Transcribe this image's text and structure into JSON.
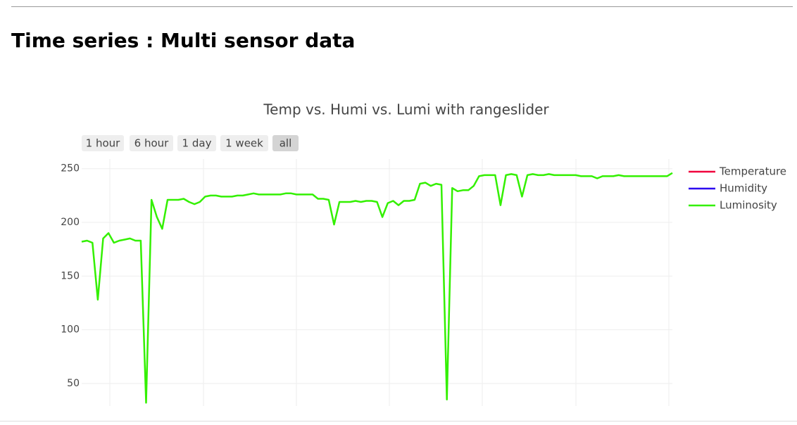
{
  "heading": "Time series : Multi sensor data",
  "range_buttons": [
    "1 hour",
    "6 hour",
    "1 day",
    "1 week",
    "all"
  ],
  "chart_data": {
    "type": "line",
    "title": "Temp vs. Humi vs. Lumi with rangeslider",
    "categories": [
      null,
      null,
      null,
      null,
      null,
      null,
      null,
      null,
      null,
      null,
      null,
      null,
      null,
      null,
      null,
      null,
      null,
      null,
      null,
      null,
      null,
      null,
      null,
      null,
      null,
      null,
      null,
      null,
      null,
      null,
      null,
      null,
      null,
      null,
      null,
      null,
      null,
      null,
      null,
      null,
      null,
      null,
      null,
      null,
      null,
      null,
      null,
      null,
      null,
      null,
      null,
      null,
      null,
      null,
      null,
      null,
      null,
      null,
      null,
      null,
      null,
      null,
      null,
      null,
      null,
      null,
      null,
      null,
      null,
      null,
      null,
      null,
      null,
      null,
      null,
      null,
      null,
      null,
      null,
      null,
      null,
      null,
      null,
      null,
      null,
      null,
      null,
      null,
      null,
      null,
      null,
      null,
      null,
      null,
      null,
      null,
      null,
      null,
      null,
      null,
      null,
      null,
      null,
      null,
      null,
      null,
      null,
      null,
      null,
      null,
      null
    ],
    "series": [
      {
        "name": "Temperature",
        "color": "#f0003c",
        "values": [
          null,
          null,
          null,
          null,
          null,
          null,
          null,
          null,
          null,
          null,
          null,
          null,
          null,
          null,
          null,
          null,
          null,
          null,
          null,
          null,
          null,
          null,
          null,
          null,
          null,
          null,
          null,
          null,
          null,
          null,
          null,
          null,
          null,
          null,
          null,
          null,
          null,
          null,
          null,
          null,
          null,
          null,
          null,
          null,
          null,
          null,
          null,
          null,
          null,
          null,
          null,
          null,
          null,
          null,
          null,
          null,
          null,
          null,
          null,
          null,
          null,
          null,
          null,
          null,
          null,
          null,
          null,
          null,
          null,
          null,
          null,
          null,
          null,
          null,
          null,
          null,
          null,
          null,
          null,
          null,
          null,
          null,
          null,
          null,
          null,
          null,
          null,
          null,
          null,
          null,
          null,
          null,
          null,
          null,
          null,
          null,
          null,
          null,
          null,
          null,
          null,
          null,
          null,
          null,
          null,
          null,
          null,
          null,
          null,
          null,
          null
        ]
      },
      {
        "name": "Humidity",
        "color": "#2b00f0",
        "values": [
          null,
          null,
          null,
          null,
          null,
          null,
          null,
          null,
          null,
          null,
          null,
          null,
          null,
          null,
          null,
          null,
          null,
          null,
          null,
          null,
          null,
          null,
          null,
          null,
          null,
          null,
          null,
          null,
          null,
          null,
          null,
          null,
          null,
          null,
          null,
          null,
          null,
          null,
          null,
          null,
          null,
          null,
          null,
          null,
          null,
          null,
          null,
          null,
          null,
          null,
          null,
          null,
          null,
          null,
          null,
          null,
          null,
          null,
          null,
          null,
          null,
          null,
          null,
          null,
          null,
          null,
          null,
          null,
          null,
          null,
          null,
          null,
          null,
          null,
          null,
          null,
          null,
          null,
          null,
          null,
          null,
          null,
          null,
          null,
          null,
          null,
          null,
          null,
          null,
          null,
          null,
          null,
          null,
          null,
          null,
          null,
          null,
          null,
          null,
          null,
          null,
          null,
          null,
          null,
          null,
          null,
          null,
          null,
          null,
          null,
          null
        ]
      },
      {
        "name": "Luminosity",
        "color": "#33f000",
        "values": [
          182,
          183,
          181,
          128,
          185,
          190,
          181,
          183,
          184,
          185,
          183,
          183,
          32,
          221,
          205,
          194,
          221,
          221,
          221,
          222,
          219,
          217,
          219,
          224,
          225,
          225,
          224,
          224,
          224,
          225,
          225,
          226,
          227,
          226,
          226,
          226,
          226,
          226,
          227,
          227,
          226,
          226,
          226,
          226,
          222,
          222,
          221,
          198,
          219,
          219,
          219,
          220,
          219,
          220,
          220,
          219,
          205,
          218,
          220,
          216,
          220,
          220,
          221,
          236,
          237,
          234,
          236,
          235,
          35,
          232,
          229,
          230,
          230,
          234,
          243,
          244,
          244,
          244,
          216,
          244,
          245,
          244,
          224,
          244,
          245,
          244,
          244,
          245,
          244,
          244,
          244,
          244,
          244,
          243,
          243,
          243,
          241,
          243,
          243,
          243,
          244,
          243,
          243,
          243,
          243,
          243,
          243,
          243,
          243,
          243,
          246
        ]
      }
    ],
    "ylim": [
      29,
      259
    ],
    "yticks": [
      50,
      100,
      150,
      200,
      250
    ],
    "grid": true,
    "legend": "right"
  }
}
